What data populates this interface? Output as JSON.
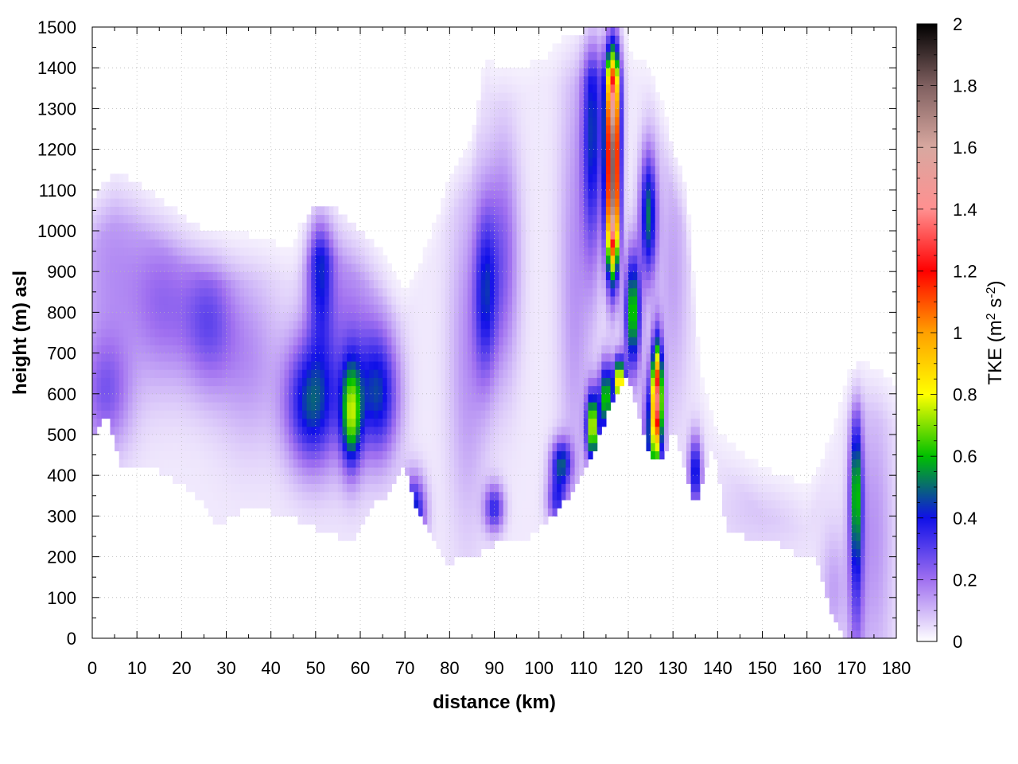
{
  "chart_data": {
    "type": "heatmap",
    "title": "",
    "xlabel": "distance (km)",
    "ylabel": "height (m) asl",
    "xlim": [
      0,
      180
    ],
    "ylim": [
      0,
      1500
    ],
    "x_ticks": [
      0,
      10,
      20,
      30,
      40,
      50,
      60,
      70,
      80,
      90,
      100,
      110,
      120,
      130,
      140,
      150,
      160,
      170,
      180
    ],
    "y_ticks": [
      0,
      100,
      200,
      300,
      400,
      500,
      600,
      700,
      800,
      900,
      1000,
      1100,
      1200,
      1300,
      1400,
      1500
    ],
    "grid": true,
    "colorbar": {
      "label_prefix": "TKE (m",
      "label_sup1": "2",
      "label_mid": " s",
      "label_sup2": "-2",
      "label_suffix": ")",
      "range": [
        0,
        2
      ],
      "ticks": [
        0,
        0.2,
        0.4,
        0.6,
        0.8,
        1,
        1.2,
        1.4,
        1.6,
        1.8,
        2
      ],
      "stops": [
        {
          "v": 0.0,
          "color": "#ffffff"
        },
        {
          "v": 0.2,
          "color": "#a070f0"
        },
        {
          "v": 0.4,
          "color": "#1010e8"
        },
        {
          "v": 0.6,
          "color": "#00c000"
        },
        {
          "v": 0.8,
          "color": "#ffff00"
        },
        {
          "v": 1.0,
          "color": "#ffa000"
        },
        {
          "v": 1.2,
          "color": "#ff0000"
        },
        {
          "v": 1.4,
          "color": "#ff9090"
        },
        {
          "v": 1.6,
          "color": "#d8a8a0"
        },
        {
          "v": 1.8,
          "color": "#806060"
        },
        {
          "v": 2.0,
          "color": "#000000"
        }
      ]
    },
    "terrain": [
      [
        0,
        500
      ],
      [
        2,
        540
      ],
      [
        4,
        530
      ],
      [
        6,
        430
      ],
      [
        10,
        410
      ],
      [
        14,
        420
      ],
      [
        20,
        380
      ],
      [
        24,
        340
      ],
      [
        28,
        280
      ],
      [
        31,
        300
      ],
      [
        34,
        320
      ],
      [
        38,
        320
      ],
      [
        42,
        300
      ],
      [
        46,
        290
      ],
      [
        50,
        270
      ],
      [
        53,
        260
      ],
      [
        57,
        235
      ],
      [
        59,
        250
      ],
      [
        62,
        320
      ],
      [
        66,
        350
      ],
      [
        70,
        420
      ],
      [
        73,
        310
      ],
      [
        76,
        260
      ],
      [
        80,
        170
      ],
      [
        82,
        200
      ],
      [
        85,
        190
      ],
      [
        88,
        220
      ],
      [
        91,
        240
      ],
      [
        94,
        250
      ],
      [
        97,
        245
      ],
      [
        100,
        275
      ],
      [
        103,
        300
      ],
      [
        106,
        340
      ],
      [
        110,
        410
      ],
      [
        113,
        480
      ],
      [
        117,
        600
      ],
      [
        120,
        650
      ],
      [
        122,
        560
      ],
      [
        124,
        470
      ],
      [
        126,
        430
      ],
      [
        128,
        450
      ],
      [
        130,
        520
      ],
      [
        132,
        450
      ],
      [
        135,
        310
      ],
      [
        137,
        400
      ],
      [
        139,
        480
      ],
      [
        142,
        270
      ],
      [
        146,
        250
      ],
      [
        150,
        240
      ],
      [
        154,
        230
      ],
      [
        158,
        200
      ],
      [
        162,
        190
      ],
      [
        165,
        80
      ],
      [
        168,
        10
      ],
      [
        180,
        10
      ]
    ],
    "top": [
      [
        0,
        1080
      ],
      [
        5,
        1140
      ],
      [
        10,
        1120
      ],
      [
        15,
        1080
      ],
      [
        20,
        1040
      ],
      [
        25,
        1000
      ],
      [
        30,
        990
      ],
      [
        35,
        1000
      ],
      [
        40,
        1000
      ],
      [
        45,
        990
      ],
      [
        50,
        1060
      ],
      [
        55,
        1050
      ],
      [
        60,
        1000
      ],
      [
        65,
        950
      ],
      [
        68,
        900
      ],
      [
        70,
        890
      ],
      [
        75,
        1020
      ],
      [
        80,
        1150
      ],
      [
        85,
        1220
      ],
      [
        88,
        1480
      ],
      [
        90,
        1430
      ],
      [
        95,
        1440
      ],
      [
        100,
        1480
      ],
      [
        104,
        1480
      ],
      [
        107,
        1480
      ],
      [
        110,
        1490
      ],
      [
        113,
        1500
      ],
      [
        120,
        1500
      ],
      [
        125,
        1450
      ],
      [
        130,
        1200
      ],
      [
        133,
        1100
      ],
      [
        136,
        700
      ],
      [
        140,
        560
      ],
      [
        150,
        420
      ],
      [
        160,
        380
      ],
      [
        168,
        640
      ],
      [
        172,
        680
      ],
      [
        176,
        660
      ],
      [
        180,
        640
      ]
    ],
    "features": [
      {
        "x": 4,
        "y": 920,
        "sx": 6,
        "sy": 180,
        "v": 0.12
      },
      {
        "x": 16,
        "y": 820,
        "sx": 5,
        "sy": 140,
        "v": 0.17
      },
      {
        "x": 26,
        "y": 780,
        "sx": 4,
        "sy": 120,
        "v": 0.22
      },
      {
        "x": 35,
        "y": 690,
        "sx": 5,
        "sy": 150,
        "v": 0.12
      },
      {
        "x": 3,
        "y": 600,
        "sx": 4,
        "sy": 100,
        "v": 0.2
      },
      {
        "x": 49,
        "y": 580,
        "sx": 4,
        "sy": 110,
        "v": 0.42
      },
      {
        "x": 51,
        "y": 920,
        "sx": 2,
        "sy": 130,
        "v": 0.34
      },
      {
        "x": 58,
        "y": 550,
        "sx": 1.6,
        "sy": 90,
        "v": 0.55
      },
      {
        "x": 64,
        "y": 600,
        "sx": 3.2,
        "sy": 110,
        "v": 0.38
      },
      {
        "x": 57,
        "y": 750,
        "sx": 5,
        "sy": 200,
        "v": 0.16
      },
      {
        "x": 72,
        "y": 310,
        "sx": 1.8,
        "sy": 60,
        "v": 0.42
      },
      {
        "x": 88,
        "y": 850,
        "sx": 1.8,
        "sy": 150,
        "v": 0.32
      },
      {
        "x": 92,
        "y": 930,
        "sx": 2.5,
        "sy": 200,
        "v": 0.2
      },
      {
        "x": 90,
        "y": 320,
        "sx": 1.5,
        "sy": 40,
        "v": 0.32
      },
      {
        "x": 84,
        "y": 700,
        "sx": 3,
        "sy": 300,
        "v": 0.12
      },
      {
        "x": 105,
        "y": 430,
        "sx": 1.6,
        "sy": 40,
        "v": 0.42
      },
      {
        "x": 104,
        "y": 340,
        "sx": 1.5,
        "sy": 40,
        "v": 0.3
      },
      {
        "x": 112,
        "y": 1250,
        "sx": 1.6,
        "sy": 220,
        "v": 0.4
      },
      {
        "x": 116.5,
        "y": 1150,
        "sx": 1.0,
        "sy": 150,
        "v": 1.3
      },
      {
        "x": 116.5,
        "y": 1360,
        "sx": 1.2,
        "sy": 160,
        "v": 0.75
      },
      {
        "x": 116.5,
        "y": 1000,
        "sx": 1.0,
        "sy": 90,
        "v": 0.55
      },
      {
        "x": 121,
        "y": 800,
        "sx": 1.2,
        "sy": 100,
        "v": 0.62
      },
      {
        "x": 124.5,
        "y": 1040,
        "sx": 1.3,
        "sy": 110,
        "v": 0.48
      },
      {
        "x": 126.5,
        "y": 600,
        "sx": 0.8,
        "sy": 90,
        "v": 1.05
      },
      {
        "x": 125.5,
        "y": 500,
        "sx": 1.4,
        "sy": 110,
        "v": 0.5
      },
      {
        "x": 112,
        "y": 520,
        "sx": 1.0,
        "sy": 60,
        "v": 0.75
      },
      {
        "x": 115,
        "y": 590,
        "sx": 1.0,
        "sy": 60,
        "v": 0.62
      },
      {
        "x": 118,
        "y": 630,
        "sx": 0.9,
        "sy": 40,
        "v": 0.9
      },
      {
        "x": 135,
        "y": 410,
        "sx": 1.0,
        "sy": 60,
        "v": 0.4
      },
      {
        "x": 108,
        "y": 900,
        "sx": 2.5,
        "sy": 400,
        "v": 0.12
      },
      {
        "x": 130,
        "y": 900,
        "sx": 2.5,
        "sy": 250,
        "v": 0.1
      },
      {
        "x": 171,
        "y": 380,
        "sx": 0.9,
        "sy": 120,
        "v": 0.4
      },
      {
        "x": 171,
        "y": 200,
        "sx": 1.2,
        "sy": 200,
        "v": 0.25
      },
      {
        "x": 175,
        "y": 250,
        "sx": 3,
        "sy": 250,
        "v": 0.12
      },
      {
        "x": 166,
        "y": 120,
        "sx": 2,
        "sy": 100,
        "v": 0.1
      },
      {
        "x": 150,
        "y": 320,
        "sx": 8,
        "sy": 80,
        "v": 0.05
      }
    ]
  }
}
